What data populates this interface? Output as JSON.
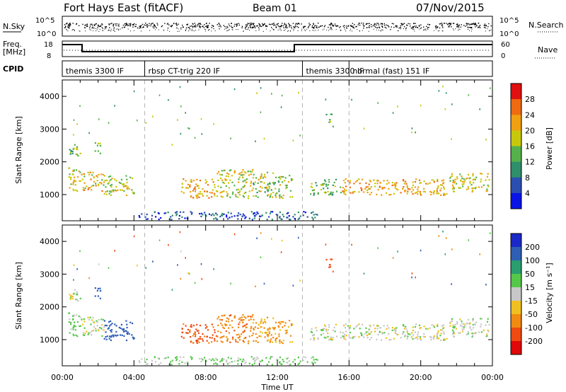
{
  "header": {
    "station": "Fort Hays East (fitACF)",
    "beam": "Beam 01",
    "date": "07/Nov/2015"
  },
  "strips": {
    "nsky_label": "N.Sky",
    "nsky_ticks": [
      "10^5",
      "10^0"
    ],
    "nsearch_label": "N.Search",
    "nsearch_ticks": [
      "10^5",
      "10^0"
    ],
    "freq_label": "Freq.",
    "freq_unit": "[MHz]",
    "freq_ticks": [
      "18",
      "8"
    ],
    "nave_label": "Nave",
    "nave_ticks": [
      "60",
      "0"
    ],
    "cpid_label": "CPID"
  },
  "cpid_segments": [
    {
      "name": "themis 3300 IF",
      "start_h": 0,
      "end_h": 4.6
    },
    {
      "name": "rbsp CT-trig 220 IF",
      "start_h": 4.6,
      "end_h": 13.4
    },
    {
      "name": "themis 3300 IF",
      "start_h": 13.4,
      "end_h": 16.0
    },
    {
      "name": "normal (fast) 151 IF",
      "start_h": 16.0,
      "end_h": 24.0
    }
  ],
  "x_ticks": [
    "00:00",
    "04:00",
    "08:00",
    "12:00",
    "16:00",
    "20:00",
    "00:00"
  ],
  "x_label": "Time UT",
  "y_label": "Slant Range [km]",
  "y_ticks": [
    "1000",
    "2000",
    "3000",
    "4000"
  ],
  "power_colorbar": {
    "label": "Power [dB]",
    "ticks": [
      "4",
      "8",
      "12",
      "16",
      "20",
      "24",
      "28"
    ],
    "colors": [
      "#0a14e6",
      "#2a4fb0",
      "#2f8f6a",
      "#55b24a",
      "#c8c80a",
      "#f0a010",
      "#f06a10",
      "#e01010"
    ]
  },
  "velocity_colorbar": {
    "label": "Velocity [m s⁻¹]",
    "ticks": [
      "200",
      "100",
      "50",
      "15",
      "-15",
      "-50",
      "-100",
      "-200"
    ],
    "colors": [
      "#1a28c8",
      "#2e5fb4",
      "#2a9e6e",
      "#55c84a",
      "#c8c8c8",
      "#f0c020",
      "#f08a10",
      "#f04a10",
      "#e00808"
    ]
  },
  "chart_data": {
    "type": "heatmap",
    "x_unit": "hours UT",
    "xlim": [
      0,
      24
    ],
    "ylim": [
      200,
      4500
    ],
    "blobs": [
      {
        "t0": 0.2,
        "t1": 1.0,
        "r0": 2200,
        "r1": 2600,
        "power": 14,
        "velocity": 0
      },
      {
        "t0": 0.3,
        "t1": 1.0,
        "r0": 1100,
        "r1": 1900,
        "power": 18,
        "velocity": 20
      },
      {
        "t0": 1.0,
        "t1": 2.3,
        "r0": 1100,
        "r1": 1700,
        "power": 20,
        "velocity": 0
      },
      {
        "t0": 1.8,
        "t1": 2.2,
        "r0": 2200,
        "r1": 2600,
        "power": 16,
        "velocity": 150
      },
      {
        "t0": 2.3,
        "t1": 4.0,
        "r0": 1000,
        "r1": 1600,
        "power": 18,
        "velocity": 160
      },
      {
        "t0": 6.6,
        "t1": 8.6,
        "r0": 900,
        "r1": 1500,
        "power": 22,
        "velocity": -120
      },
      {
        "t0": 8.6,
        "t1": 10.6,
        "r0": 900,
        "r1": 1800,
        "power": 18,
        "velocity": -80
      },
      {
        "t0": 10.6,
        "t1": 12.8,
        "r0": 900,
        "r1": 1700,
        "power": 16,
        "velocity": -60
      },
      {
        "t0": 13.8,
        "t1": 15.6,
        "r0": 1000,
        "r1": 1500,
        "power": 14,
        "velocity": 0
      },
      {
        "t0": 15.6,
        "t1": 21.5,
        "r0": 1000,
        "r1": 1500,
        "power": 22,
        "velocity": 0
      },
      {
        "t0": 21.5,
        "t1": 23.8,
        "r0": 1100,
        "r1": 1700,
        "power": 18,
        "velocity": 0
      },
      {
        "t0": 14.6,
        "t1": 15.0,
        "r0": 3200,
        "r1": 3500,
        "power": 12,
        "velocity": -180
      },
      {
        "t0": 4.2,
        "t1": 14.2,
        "r0": 250,
        "r1": 500,
        "power": 6,
        "velocity": 20
      }
    ]
  }
}
